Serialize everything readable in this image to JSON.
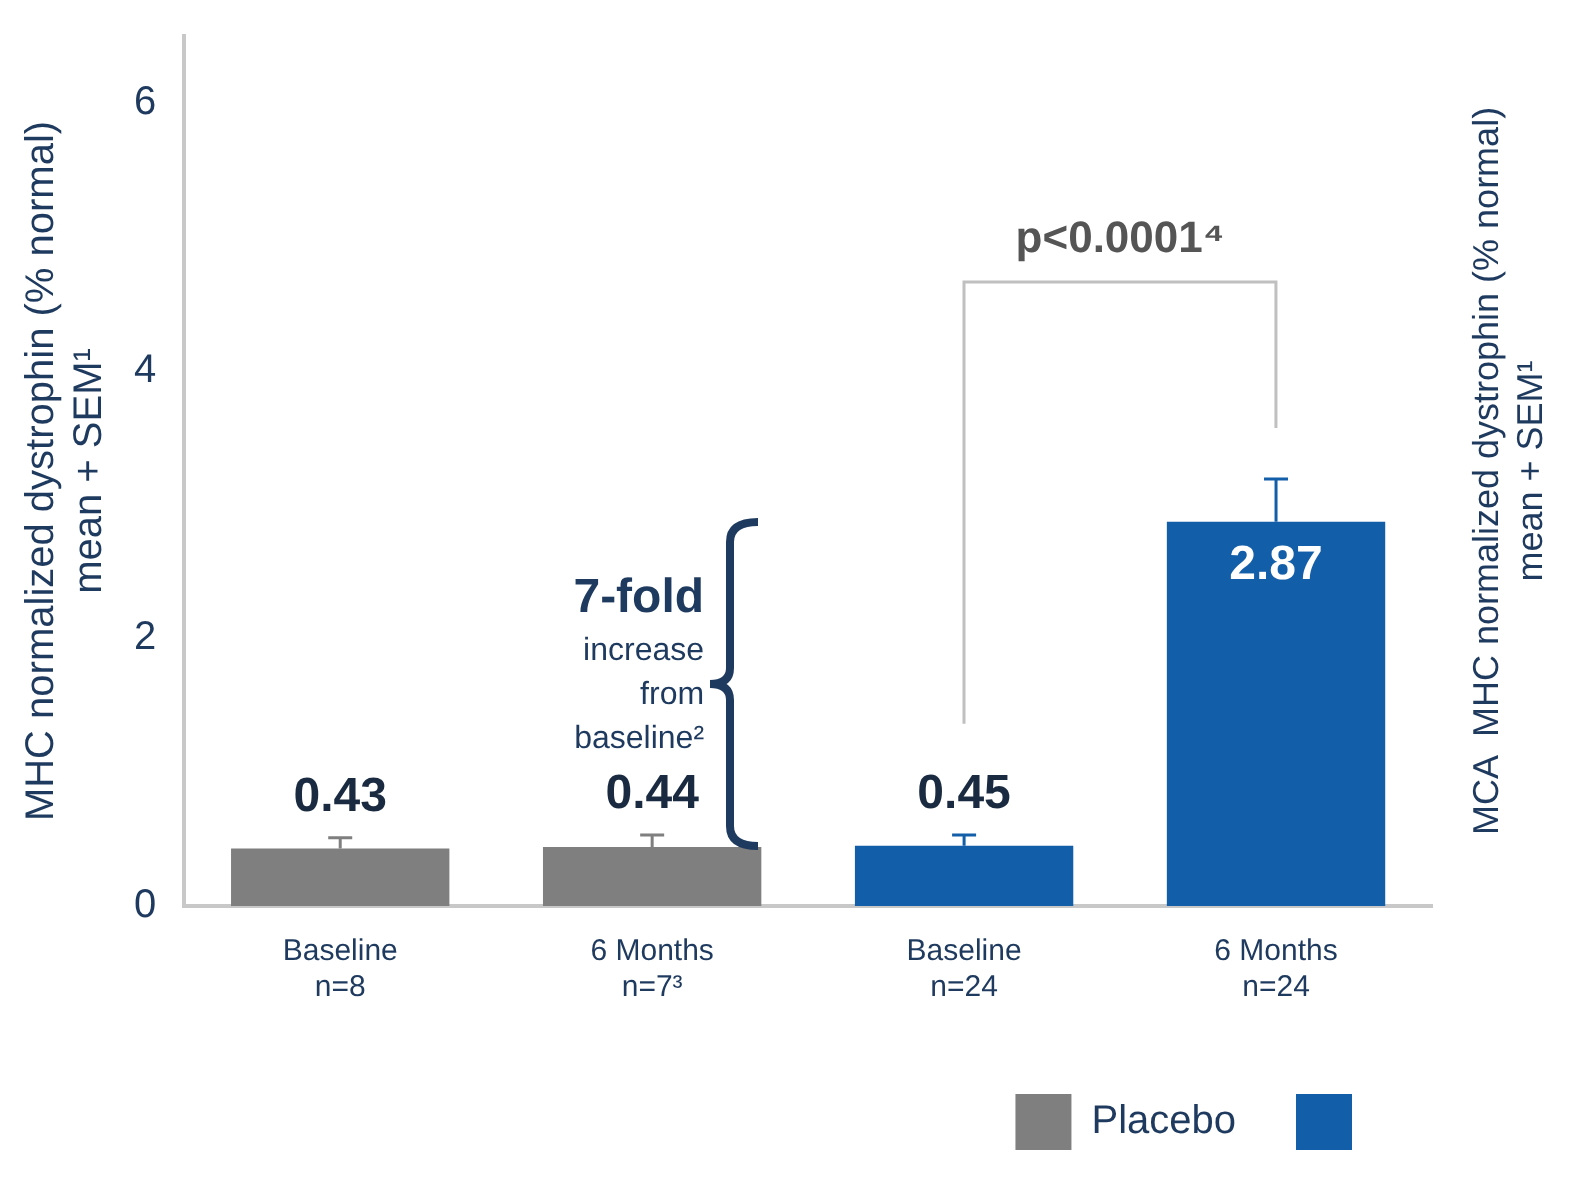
{
  "chart_data": {
    "type": "bar",
    "ylabel": "MHC normalized dystrophin (% normal)\nmean + SEM¹",
    "y2label": "MCA  MHC normalized dystrophin (% normal)\nmean + SEM¹",
    "categories": [
      "Baseline\nn=8",
      "6 Months\nn=7³",
      "Baseline\nn=24",
      "6 Months\nn=24"
    ],
    "series": [
      {
        "name": "Placebo",
        "color": "#7f7f7f",
        "values": [
          0.43,
          0.44,
          null,
          null
        ],
        "errors": [
          0.08,
          0.09,
          null,
          null
        ]
      },
      {
        "color": "#135ea8",
        "values": [
          null,
          null,
          0.45,
          2.87
        ],
        "errors": [
          null,
          null,
          0.08,
          0.32
        ]
      }
    ],
    "ylim": [
      0,
      6.5
    ],
    "yticks": [
      0,
      2,
      4,
      6
    ],
    "grid": false,
    "legend": "bottom right",
    "data_labels": true,
    "annotations": [
      "7-fold\nincrease\nfrom\nbaseline²",
      "p<0.0001⁴"
    ]
  }
}
